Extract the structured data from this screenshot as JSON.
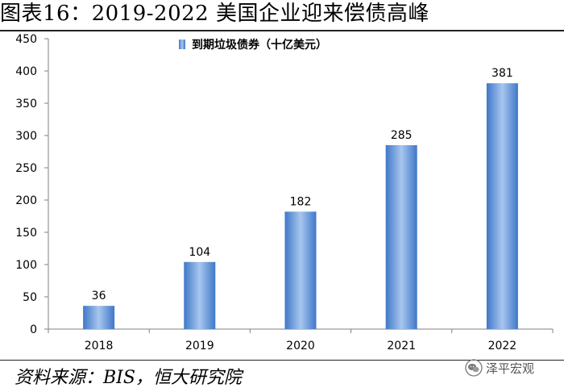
{
  "title": "图表16：2019-2022 美国企业迎来偿债高峰",
  "source": "资料来源：BIS，恒大研究院",
  "watermark": {
    "text": "泽平宏观",
    "icon": "wechat-icon"
  },
  "colors": {
    "bar_edge": "#3f78c8",
    "bar_center": "#a7c6ee",
    "axis": "#808080"
  },
  "chart_data": {
    "type": "bar",
    "categories": [
      "2018",
      "2019",
      "2020",
      "2021",
      "2022"
    ],
    "series": [
      {
        "name": "到期垃圾债券（十亿美元）",
        "values": [
          36,
          104,
          182,
          285,
          381
        ]
      }
    ],
    "data_labels": [
      "36",
      "104",
      "182",
      "285",
      "381"
    ],
    "ylim": [
      0,
      450
    ],
    "yticks": [
      0,
      50,
      100,
      150,
      200,
      250,
      300,
      350,
      400,
      450
    ],
    "ytick_labels": [
      "0",
      "50",
      "100",
      "150",
      "200",
      "250",
      "300",
      "350",
      "400",
      "450"
    ],
    "grid": false,
    "legend_position": "top-left"
  }
}
